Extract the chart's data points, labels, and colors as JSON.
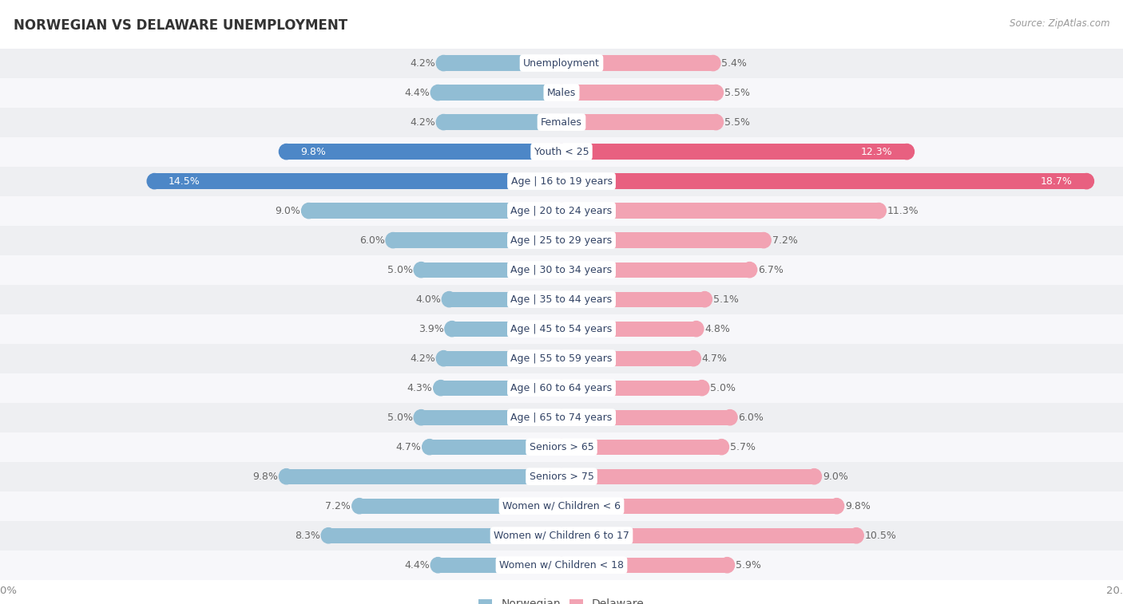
{
  "title": "NORWEGIAN VS DELAWARE UNEMPLOYMENT",
  "source": "Source: ZipAtlas.com",
  "categories": [
    "Unemployment",
    "Males",
    "Females",
    "Youth < 25",
    "Age | 16 to 19 years",
    "Age | 20 to 24 years",
    "Age | 25 to 29 years",
    "Age | 30 to 34 years",
    "Age | 35 to 44 years",
    "Age | 45 to 54 years",
    "Age | 55 to 59 years",
    "Age | 60 to 64 years",
    "Age | 65 to 74 years",
    "Seniors > 65",
    "Seniors > 75",
    "Women w/ Children < 6",
    "Women w/ Children 6 to 17",
    "Women w/ Children < 18"
  ],
  "norwegian": [
    4.2,
    4.4,
    4.2,
    9.8,
    14.5,
    9.0,
    6.0,
    5.0,
    4.0,
    3.9,
    4.2,
    4.3,
    5.0,
    4.7,
    9.8,
    7.2,
    8.3,
    4.4
  ],
  "delaware": [
    5.4,
    5.5,
    5.5,
    12.3,
    18.7,
    11.3,
    7.2,
    6.7,
    5.1,
    4.8,
    4.7,
    5.0,
    6.0,
    5.7,
    9.0,
    9.8,
    10.5,
    5.9
  ],
  "norwegian_color": "#91bdd4",
  "delaware_color": "#f2a3b3",
  "norwegian_highlight_color": "#4d87c7",
  "delaware_highlight_color": "#e86080",
  "highlight_rows": [
    3,
    4
  ],
  "bg_color": "#ffffff",
  "axis_max": 20.0,
  "legend_norwegian": "Norwegian",
  "legend_delaware": "Delaware",
  "bar_height": 0.52,
  "label_fontsize": 9.0,
  "category_fontsize": 9.0,
  "row_colors": [
    "#eeeff2",
    "#f7f7fa"
  ]
}
